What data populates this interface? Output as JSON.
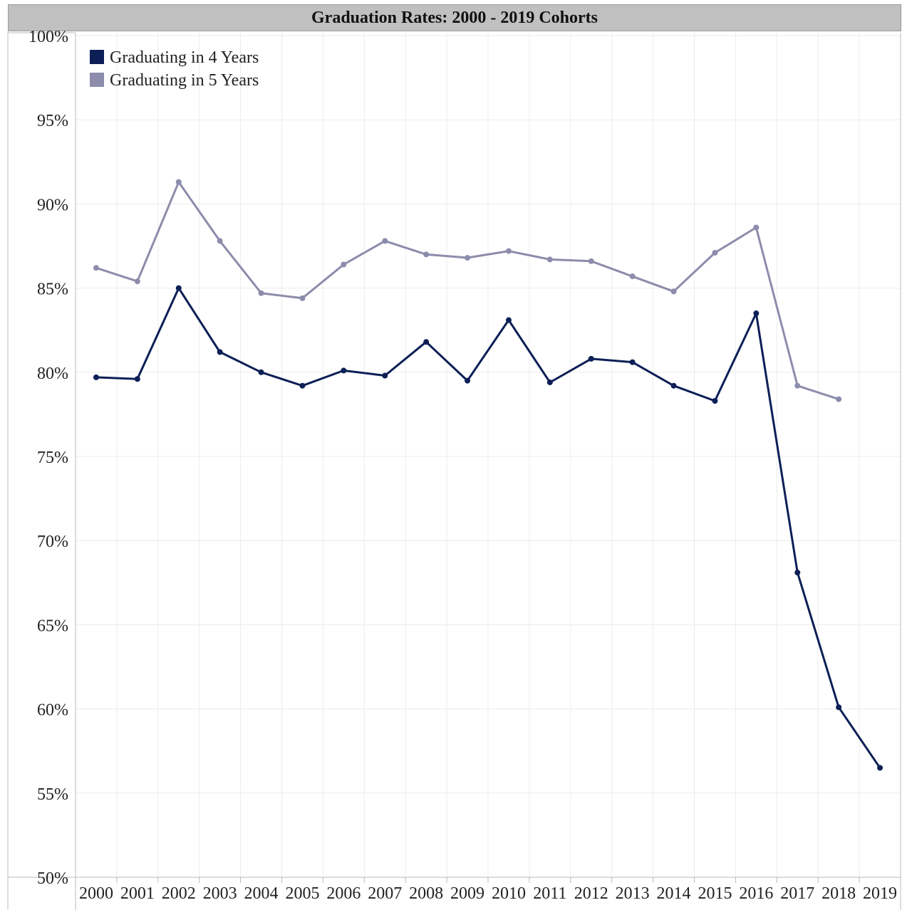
{
  "chart_data": {
    "type": "line",
    "title": "Graduation Rates: 2000 - 2019 Cohorts",
    "xlabel": "",
    "ylabel": "",
    "categories": [
      "2000",
      "2001",
      "2002",
      "2003",
      "2004",
      "2005",
      "2006",
      "2007",
      "2008",
      "2009",
      "2010",
      "2011",
      "2012",
      "2013",
      "2014",
      "2015",
      "2016",
      "2017",
      "2018",
      "2019"
    ],
    "ylim": [
      50,
      100
    ],
    "yticks": [
      "50%",
      "55%",
      "60%",
      "65%",
      "70%",
      "75%",
      "80%",
      "85%",
      "90%",
      "95%",
      "100%"
    ],
    "grid": true,
    "legend_position": "top-left",
    "series": [
      {
        "name": "Graduating in 4 Years",
        "color": "#0c1f56",
        "values": [
          79.7,
          79.6,
          85.0,
          81.2,
          80.0,
          79.2,
          80.1,
          79.8,
          81.8,
          79.5,
          83.1,
          79.4,
          80.8,
          80.6,
          79.2,
          78.3,
          83.5,
          68.1,
          60.1,
          56.5
        ]
      },
      {
        "name": "Graduating in 5 Years",
        "color": "#8c8cac",
        "values": [
          86.2,
          85.4,
          91.3,
          87.8,
          84.7,
          84.4,
          86.4,
          87.8,
          87.0,
          86.8,
          87.2,
          86.7,
          86.6,
          85.7,
          84.8,
          87.1,
          88.6,
          79.2,
          78.4,
          null
        ]
      }
    ]
  }
}
